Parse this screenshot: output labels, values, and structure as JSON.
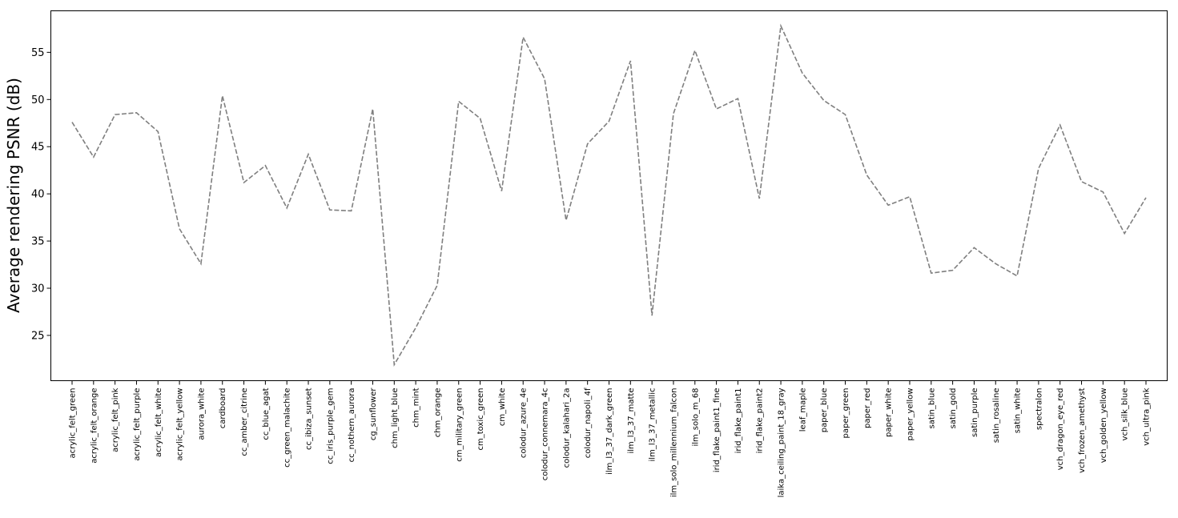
{
  "chart_data": {
    "type": "line",
    "ylabel": "Average rendering PSNR (dB)",
    "xlabel": "",
    "ylim": [
      20.2,
      59.4
    ],
    "yticks": [
      25,
      30,
      35,
      40,
      45,
      50,
      55
    ],
    "line_style": "dashed",
    "line_color": "#7f7f7f",
    "grid": false,
    "categories": [
      "acrylic_felt_green",
      "acrylic_felt_orange",
      "acrylic_felt_pink",
      "acrylic_felt_purple",
      "acrylic_felt_white",
      "acrylic_felt_yellow",
      "aurora_white",
      "cardboard",
      "cc_amber_citrine",
      "cc_blue_agat",
      "cc_green_malachite",
      "cc_ibiza_sunset",
      "cc_iris_purple_gem",
      "cc_nothern_aurora",
      "cg_sunflower",
      "chm_light_blue",
      "chm_mint",
      "chm_orange",
      "cm_military_green",
      "cm_toxic_green",
      "cm_white",
      "colodur_azure_4e",
      "colodur_connemara_4c",
      "colodur_kalahari_2a",
      "colodur_napoli_4f",
      "ilm_l3_37_dark_green",
      "ilm_l3_37_matte",
      "ilm_l3_37_metallic",
      "ilm_solo_millennium_falcon",
      "ilm_solo_m_68",
      "irid_flake_paint1_fine",
      "irid_flake_paint1",
      "irid_flake_paint2",
      "laika_ceiling_paint_18_gray",
      "leaf_maple",
      "paper_blue",
      "paper_green",
      "paper_red",
      "paper_white",
      "paper_yellow",
      "satin_blue",
      "satin_gold",
      "satin_purple",
      "satin_rosaline",
      "satin_white",
      "spectralon",
      "vch_dragon_eye_red",
      "vch_frozen_amethyst",
      "vch_golden_yellow",
      "vch_silk_blue",
      "vch_ultra_pink"
    ],
    "values": [
      47.6,
      43.9,
      48.4,
      48.6,
      46.6,
      36.3,
      32.6,
      50.4,
      41.2,
      43.0,
      38.5,
      44.2,
      38.3,
      38.2,
      49.0,
      21.9,
      25.8,
      30.3,
      49.8,
      48.0,
      40.3,
      56.6,
      52.2,
      37.2,
      45.3,
      47.7,
      54.1,
      27.1,
      48.5,
      55.2,
      49.0,
      50.1,
      39.5,
      57.8,
      52.8,
      49.9,
      48.4,
      42.0,
      38.8,
      39.7,
      31.6,
      31.9,
      34.3,
      32.6,
      31.3,
      42.7,
      47.3,
      41.3,
      40.2,
      35.8,
      39.6
    ]
  }
}
